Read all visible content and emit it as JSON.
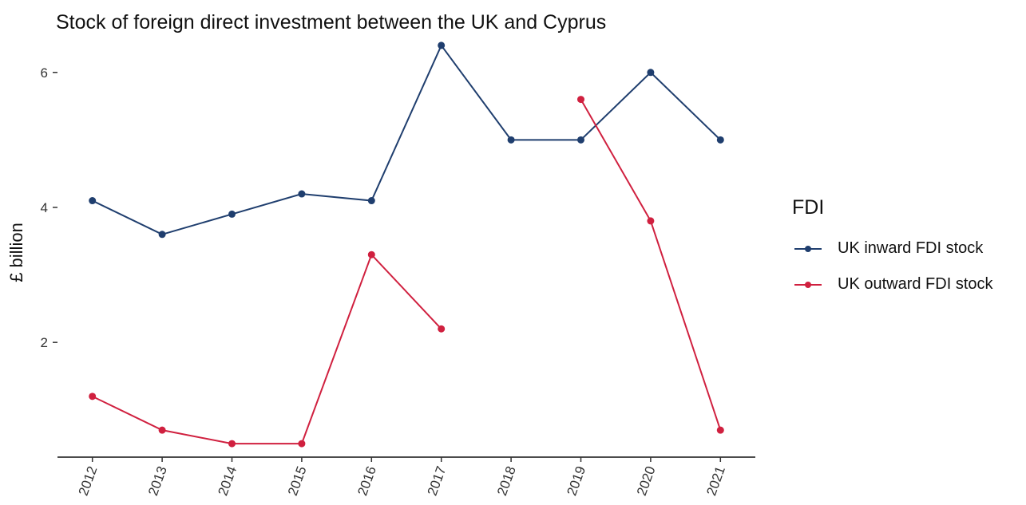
{
  "chart_data": {
    "type": "line",
    "title": "Stock of foreign direct investment between the UK and Cyprus",
    "xlabel": "",
    "ylabel": "£ billion",
    "categories": [
      "2012",
      "2013",
      "2014",
      "2015",
      "2016",
      "2017",
      "2018",
      "2019",
      "2020",
      "2021"
    ],
    "yticks": [
      2,
      4,
      6
    ],
    "ylim": [
      0.3,
      6.6
    ],
    "grid": false,
    "legend": {
      "title": "FDI",
      "position": "right"
    },
    "series": [
      {
        "name": "UK inward FDI stock",
        "color": "#1f3e6e",
        "values": [
          4.1,
          3.6,
          3.9,
          4.2,
          4.1,
          6.4,
          5.0,
          5.0,
          6.0,
          5.0
        ]
      },
      {
        "name": "UK outward FDI stock",
        "color": "#d0203f",
        "values": [
          1.2,
          0.7,
          0.5,
          0.5,
          3.3,
          2.2,
          null,
          5.6,
          3.8,
          0.7
        ]
      }
    ]
  }
}
